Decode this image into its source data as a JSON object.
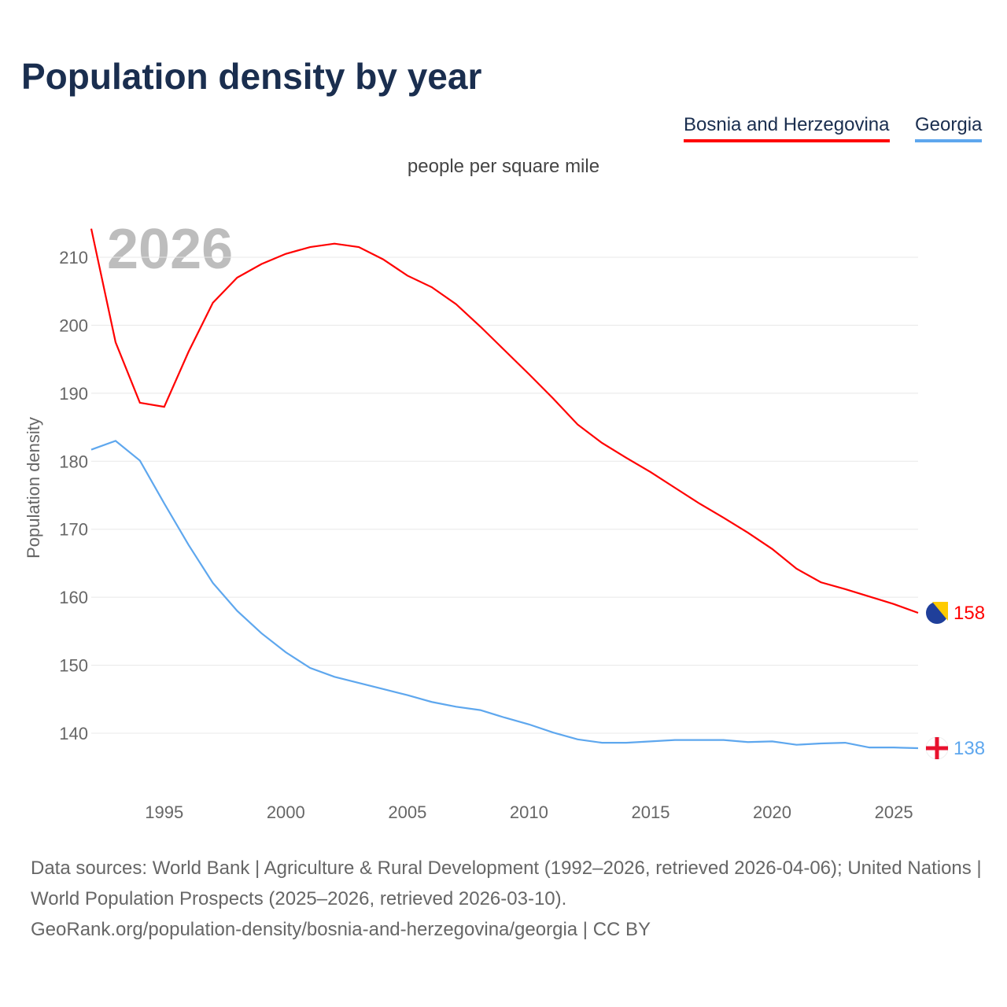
{
  "title": "Population density by year",
  "legend": [
    {
      "label": "Bosnia and Herzegovina",
      "color": "#ff0000"
    },
    {
      "label": "Georgia",
      "color": "#5ea7ee"
    }
  ],
  "subtitle": "people per square mile",
  "footer": {
    "sources": "Data sources: World Bank | Agriculture & Rural Development (1992–2026, retrieved 2026-04-06); United Nations | World Population Prospects (2025–2026, retrieved 2026-03-10).",
    "link": "GeoRank.org/population-density/bosnia-and-herzegovina/georgia | CC BY"
  },
  "chart_data": {
    "type": "line",
    "title": "Population density by year",
    "ylabel": "Population density",
    "xlabel": "",
    "year_label": "2026",
    "xlim": [
      1992,
      2026
    ],
    "ylim": [
      131,
      218
    ],
    "xticks": [
      1995,
      2000,
      2005,
      2010,
      2015,
      2020,
      2025
    ],
    "yticks": [
      140,
      150,
      160,
      170,
      180,
      190,
      200,
      210
    ],
    "grid": true,
    "legend_position": "top-right",
    "x": [
      1992,
      1993,
      1994,
      1995,
      1996,
      1997,
      1998,
      1999,
      2000,
      2001,
      2002,
      2003,
      2004,
      2005,
      2006,
      2007,
      2008,
      2009,
      2010,
      2011,
      2012,
      2013,
      2014,
      2015,
      2016,
      2017,
      2018,
      2019,
      2020,
      2021,
      2022,
      2023,
      2024,
      2025,
      2026
    ],
    "series": [
      {
        "name": "Bosnia and Herzegovina",
        "color": "#ff0000",
        "end_label": "158",
        "flag": "bosnia-flag",
        "values": [
          214.2,
          197.5,
          188.6,
          188.0,
          196.1,
          203.3,
          207.0,
          209.0,
          210.5,
          211.5,
          212.0,
          211.5,
          209.7,
          207.3,
          205.6,
          203.1,
          199.8,
          196.3,
          192.8,
          189.2,
          185.4,
          182.7,
          180.5,
          178.4,
          176.1,
          173.8,
          171.7,
          169.5,
          167.1,
          164.2,
          162.2,
          161.2,
          160.1,
          159.0,
          157.7
        ]
      },
      {
        "name": "Georgia",
        "color": "#5ea7ee",
        "end_label": "138",
        "flag": "georgia-flag",
        "values": [
          181.7,
          183.0,
          180.1,
          173.8,
          167.7,
          162.1,
          158.0,
          154.7,
          151.9,
          149.6,
          148.3,
          147.4,
          146.5,
          145.6,
          144.6,
          143.9,
          143.4,
          142.3,
          141.3,
          140.1,
          139.1,
          138.6,
          138.6,
          138.8,
          139.0,
          139.0,
          139.0,
          138.7,
          138.8,
          138.3,
          138.5,
          138.6,
          137.9,
          137.9,
          137.8
        ]
      }
    ]
  }
}
